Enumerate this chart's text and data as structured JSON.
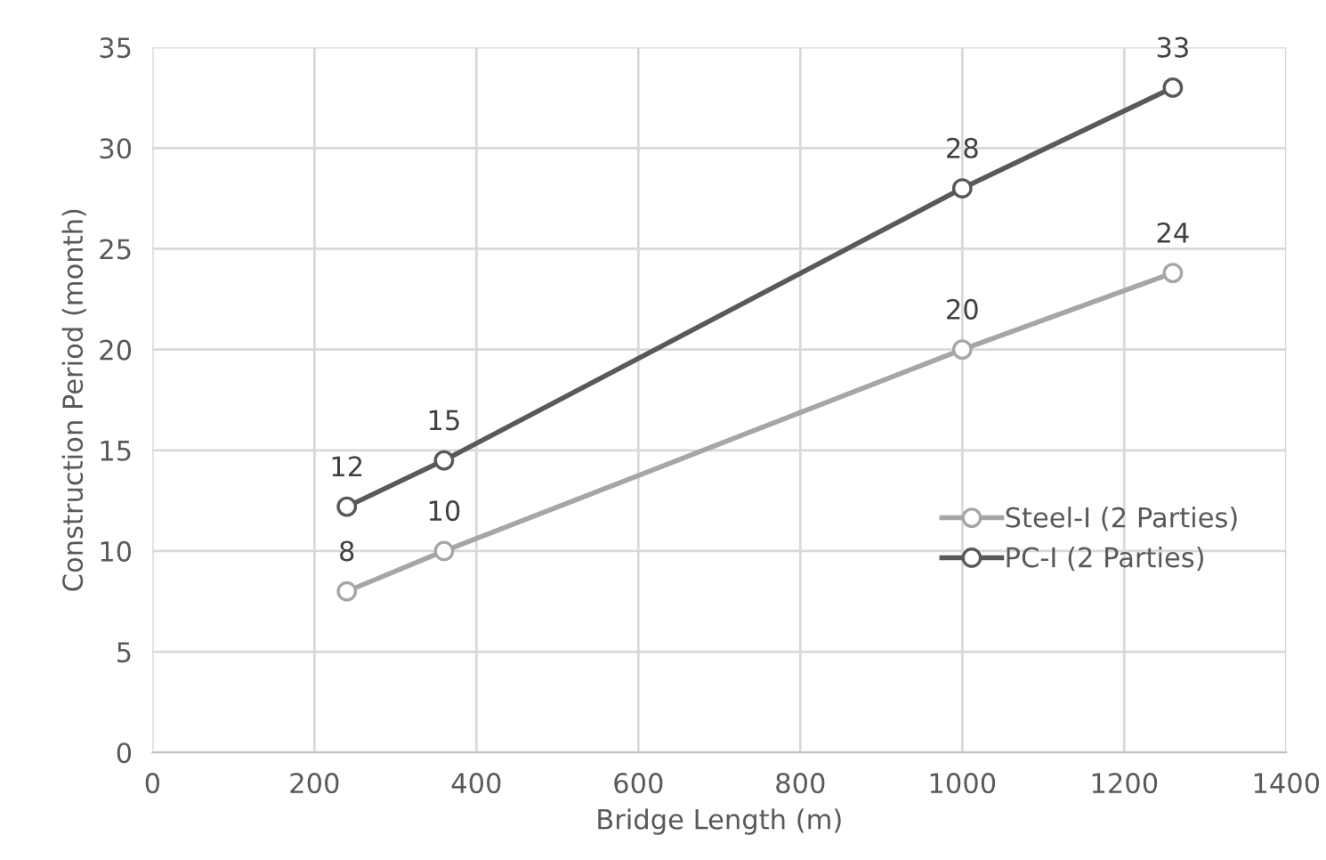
{
  "chart_data": {
    "type": "line",
    "xlabel": "Bridge Length (m)",
    "ylabel": "Construction Period (month)",
    "xlim": [
      0,
      1400
    ],
    "xticks": [
      0,
      200,
      400,
      600,
      800,
      1000,
      1200,
      1400
    ],
    "ylim": [
      0,
      35
    ],
    "yticks": [
      0,
      5,
      10,
      15,
      20,
      25,
      30,
      35
    ],
    "grid": true,
    "legend": "bottom right",
    "marker": "circle",
    "line_style": "solid",
    "series": [
      {
        "name": "Steel-I (2 Parties)",
        "color": "#a6a6a6",
        "x": [
          240,
          360,
          1000,
          1260
        ],
        "values": [
          8,
          10,
          20,
          23.8
        ],
        "value_labels": [
          "8",
          "10",
          "20",
          "24"
        ]
      },
      {
        "name": "PC-I (2 Parties)",
        "color": "#595959",
        "x": [
          240,
          360,
          1000,
          1260
        ],
        "values": [
          12.2,
          14.5,
          28,
          33
        ],
        "value_labels": [
          "12",
          "15",
          "28",
          "33"
        ]
      }
    ]
  }
}
